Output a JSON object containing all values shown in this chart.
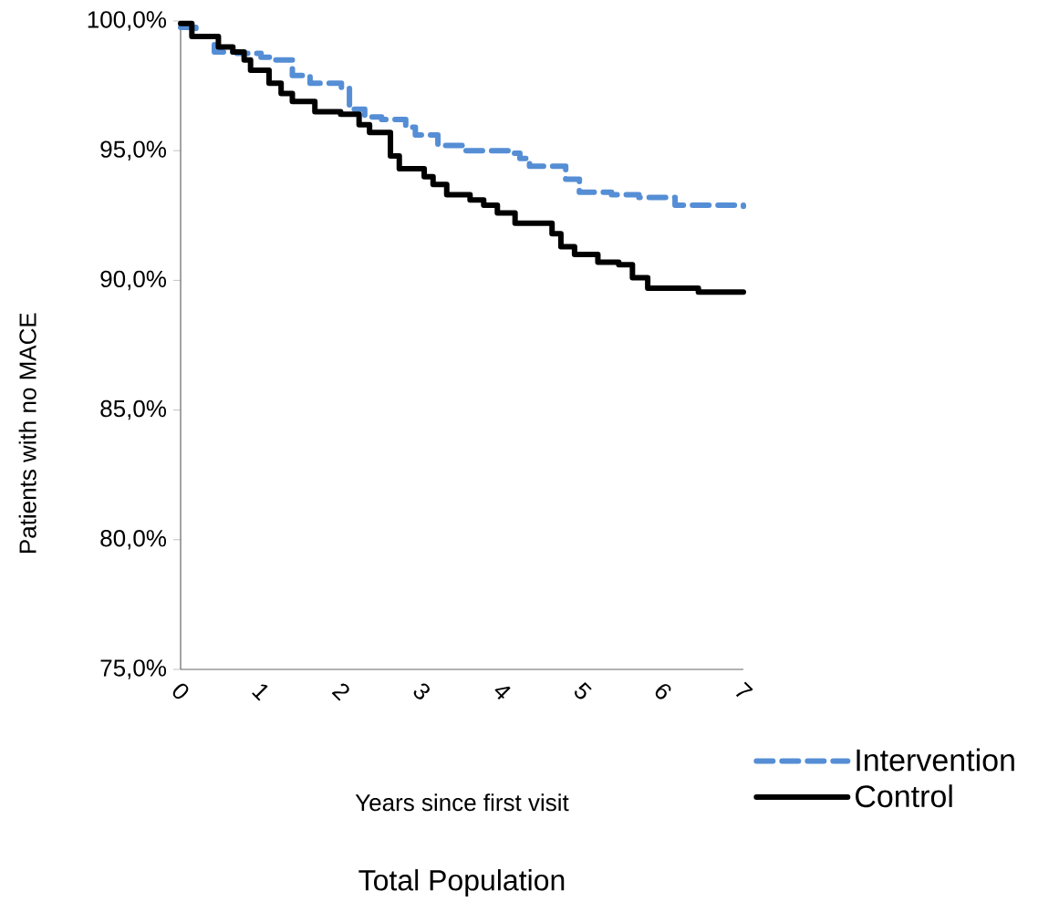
{
  "chart_data": {
    "type": "step",
    "title": "Total Population",
    "xlabel": "Years since first visit",
    "ylabel": "Patients with no MACE",
    "xlim": [
      0,
      7
    ],
    "xticks": [
      0,
      1,
      2,
      3,
      4,
      5,
      6,
      7
    ],
    "ylim": [
      75,
      100
    ],
    "yticks": [
      {
        "value": 75,
        "label": "75,0%"
      },
      {
        "value": 80,
        "label": "80,0%"
      },
      {
        "value": 85,
        "label": "85,0%"
      },
      {
        "value": 90,
        "label": "90,0%"
      },
      {
        "value": 95,
        "label": "95,0%"
      },
      {
        "value": 100,
        "label": "100,0%"
      }
    ],
    "grid": false,
    "legend": "bottom right",
    "marker": "none",
    "series": [
      {
        "name": "Intervention",
        "color": "#558ed5",
        "line_style": "dashed",
        "x": [
          0,
          0.19,
          0.42,
          0.7,
          1.0,
          1.16,
          1.39,
          1.61,
          2.0,
          2.1,
          2.29,
          2.5,
          2.8,
          2.92,
          3.2,
          3.54,
          4.11,
          4.22,
          4.34,
          4.68,
          4.79,
          4.96,
          5.36,
          5.7,
          6.15,
          7.0
        ],
        "values": [
          99.75,
          99.4,
          98.8,
          98.75,
          98.6,
          98.5,
          97.9,
          97.6,
          97.4,
          96.6,
          96.3,
          96.2,
          95.9,
          95.6,
          95.2,
          95.0,
          94.9,
          94.7,
          94.4,
          94.4,
          93.9,
          93.4,
          93.3,
          93.2,
          92.9,
          92.85
        ]
      },
      {
        "name": "Control",
        "color": "#000000",
        "line_style": "solid",
        "x": [
          0,
          0.14,
          0.47,
          0.65,
          0.79,
          0.87,
          1.1,
          1.25,
          1.39,
          1.67,
          1.99,
          2.22,
          2.35,
          2.61,
          2.72,
          3.03,
          3.14,
          3.31,
          3.6,
          3.77,
          3.94,
          4.16,
          4.62,
          4.73,
          4.9,
          5.19,
          5.45,
          5.62,
          5.81,
          6.44,
          7.0
        ],
        "values": [
          99.9,
          99.4,
          99.0,
          98.8,
          98.5,
          98.1,
          97.6,
          97.2,
          96.9,
          96.5,
          96.4,
          96.0,
          95.7,
          94.8,
          94.3,
          94.0,
          93.7,
          93.3,
          93.1,
          92.9,
          92.6,
          92.2,
          91.8,
          91.3,
          91.0,
          90.7,
          90.6,
          90.1,
          89.7,
          89.55,
          89.55
        ]
      }
    ]
  }
}
